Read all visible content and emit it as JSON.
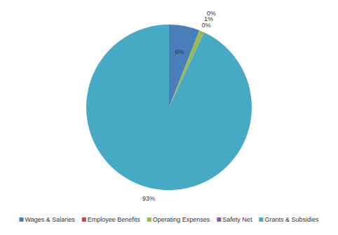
{
  "chart_data": {
    "type": "pie",
    "categories": [
      "Wages & Salaries",
      "Employee Benefits",
      "Operating Expenses",
      "Safety Net",
      "Grants & Subsidies"
    ],
    "values": [
      6,
      0,
      1,
      0,
      93
    ],
    "value_labels": [
      "6%",
      "0%",
      "1%",
      "0%",
      "93%"
    ],
    "colors": [
      "#4a7ebb",
      "#be4b48",
      "#98b954",
      "#7d60a0",
      "#46aac5"
    ],
    "data_labels": true,
    "legend": "bottom"
  }
}
